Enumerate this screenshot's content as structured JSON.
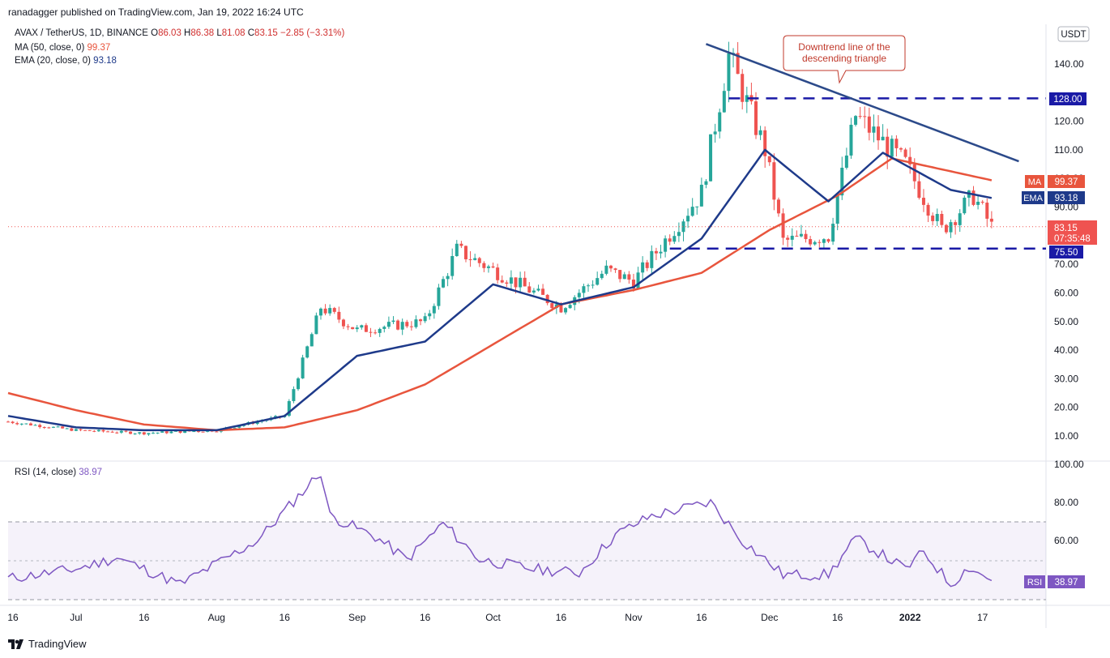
{
  "header": {
    "publisher_line": "ranadagger published on TradingView.com, Jan 19, 2022 16:24 UTC"
  },
  "legend": {
    "symbol": "AVAX / TetherUS, 1D, BINANCE",
    "o_label": "O",
    "o": "86.03",
    "h_label": "H",
    "h": "86.38",
    "l_label": "L",
    "l": "81.08",
    "c_label": "C",
    "c": "83.15",
    "change": "−2.85 (−3.31%)",
    "ma_label": "MA (50, close, 0)",
    "ma_value": "99.37",
    "ema_label": "EMA (20, close, 0)",
    "ema_value": "93.18",
    "rsi_label": "RSI (14, close)",
    "rsi_value": "38.97"
  },
  "price_axis": {
    "currency": "USDT",
    "ticks": [
      "140.00",
      "120.00",
      "110.00",
      "100.00",
      "90.00",
      "70.00",
      "60.00",
      "50.00",
      "40.00",
      "30.00",
      "20.00",
      "10.00"
    ]
  },
  "rsi_axis": {
    "ticks": [
      "100.00",
      "80.00",
      "60.00"
    ]
  },
  "price_badges": {
    "level_high": "128.00",
    "level_low": "75.50",
    "ma_tag": "MA",
    "ma": "99.37",
    "ema_tag": "EMA",
    "ema": "93.18",
    "last_price": "83.15",
    "countdown": "07:35:48",
    "rsi_tag": "RSI",
    "rsi": "38.97"
  },
  "annotation": {
    "line1": "Downtrend line of the",
    "line2": "descending triangle"
  },
  "time_axis": [
    "16",
    "Jul",
    "16",
    "Aug",
    "16",
    "Sep",
    "16",
    "Oct",
    "16",
    "Nov",
    "16",
    "Dec",
    "16",
    "2022",
    "17"
  ],
  "footer": {
    "logo_text": "TradingView"
  },
  "colors": {
    "up": "#26a69a",
    "down": "#ef5350",
    "ma": "#e8553d",
    "ema": "#1e3a8a",
    "rsi": "#7e57c2",
    "level": "#1a1aa6",
    "trend": "#2c4a8a"
  },
  "chart_data": [
    {
      "type": "candlestick",
      "title": "AVAX / TetherUS, 1D, BINANCE",
      "y_unit": "USDT",
      "ylim": [
        0,
        150
      ],
      "x_range": [
        "2022-06-16",
        "2023-01-30"
      ],
      "x_tick_labels": [
        "16",
        "Jul",
        "16",
        "Aug",
        "16",
        "Sep",
        "16",
        "Oct",
        "16",
        "Nov",
        "16",
        "Dec",
        "16",
        "2022",
        "17"
      ],
      "horizontal_levels": [
        128.0,
        75.5
      ],
      "downtrend_line": {
        "from": [
          "2021-11-17",
          147
        ],
        "to": [
          "2022-01-25",
          106
        ]
      },
      "series": [
        {
          "name": "MA (50, close, 0)",
          "last": 99.37,
          "points": [
            [
              "2021-06-16",
              25
            ],
            [
              "2021-07-01",
              19
            ],
            [
              "2021-07-16",
              14
            ],
            [
              "2021-08-01",
              12
            ],
            [
              "2021-08-16",
              13
            ],
            [
              "2021-09-01",
              19
            ],
            [
              "2021-09-16",
              28
            ],
            [
              "2021-10-01",
              42
            ],
            [
              "2021-10-16",
              56
            ],
            [
              "2021-11-01",
              61
            ],
            [
              "2021-11-16",
              67
            ],
            [
              "2021-12-01",
              82
            ],
            [
              "2021-12-16",
              94
            ],
            [
              "2021-12-28",
              107
            ],
            [
              "2022-01-19",
              99.37
            ]
          ]
        },
        {
          "name": "EMA (20, close, 0)",
          "last": 93.18,
          "points": [
            [
              "2021-06-16",
              17
            ],
            [
              "2021-07-01",
              13
            ],
            [
              "2021-07-16",
              12
            ],
            [
              "2021-08-01",
              12
            ],
            [
              "2021-08-16",
              17
            ],
            [
              "2021-09-01",
              38
            ],
            [
              "2021-09-16",
              43
            ],
            [
              "2021-10-01",
              63
            ],
            [
              "2021-10-16",
              56
            ],
            [
              "2021-11-01",
              62
            ],
            [
              "2021-11-16",
              79
            ],
            [
              "2021-11-30",
              110
            ],
            [
              "2021-12-14",
              92
            ],
            [
              "2021-12-26",
              109
            ],
            [
              "2022-01-10",
              96
            ],
            [
              "2022-01-19",
              93.18
            ]
          ]
        },
        {
          "name": "AVAX/USDT close",
          "last": 83.15,
          "points": [
            [
              "2021-06-16",
              15
            ],
            [
              "2021-07-01",
              12
            ],
            [
              "2021-07-16",
              11
            ],
            [
              "2021-08-01",
              12
            ],
            [
              "2021-08-16",
              17
            ],
            [
              "2021-08-24",
              55
            ],
            [
              "2021-09-01",
              47
            ],
            [
              "2021-09-16",
              50
            ],
            [
              "2021-09-23",
              75
            ],
            [
              "2021-10-01",
              68
            ],
            [
              "2021-10-16",
              55
            ],
            [
              "2021-10-26",
              68
            ],
            [
              "2021-11-01",
              64
            ],
            [
              "2021-11-16",
              95
            ],
            [
              "2021-11-22",
              143
            ],
            [
              "2021-11-30",
              110
            ],
            [
              "2021-12-04",
              78
            ],
            [
              "2021-12-14",
              80
            ],
            [
              "2021-12-20",
              122
            ],
            [
              "2021-12-31",
              105
            ],
            [
              "2022-01-08",
              82
            ],
            [
              "2022-01-15",
              94
            ],
            [
              "2022-01-19",
              83.15
            ]
          ]
        }
      ]
    },
    {
      "type": "line",
      "title": "RSI (14, close)",
      "ylim": [
        20,
        100
      ],
      "bands": [
        30,
        50,
        70
      ],
      "series": [
        {
          "name": "RSI (14, close)",
          "last": 38.97,
          "points": [
            [
              "2021-06-16",
              40
            ],
            [
              "2021-07-01",
              45
            ],
            [
              "2021-07-10",
              51
            ],
            [
              "2021-07-24",
              37
            ],
            [
              "2021-08-10",
              60
            ],
            [
              "2021-08-24",
              96
            ],
            [
              "2021-08-26",
              73
            ],
            [
              "2021-09-05",
              62
            ],
            [
              "2021-09-12",
              50
            ],
            [
              "2021-09-20",
              69
            ],
            [
              "2021-09-28",
              50
            ],
            [
              "2021-10-10",
              45
            ],
            [
              "2021-10-20",
              43
            ],
            [
              "2021-10-28",
              63
            ],
            [
              "2021-11-05",
              73
            ],
            [
              "2021-11-18",
              80
            ],
            [
              "2021-11-25",
              60
            ],
            [
              "2021-12-04",
              42
            ],
            [
              "2021-12-14",
              42
            ],
            [
              "2021-12-20",
              61
            ],
            [
              "2021-12-31",
              45
            ],
            [
              "2022-01-04",
              54
            ],
            [
              "2022-01-10",
              37
            ],
            [
              "2022-01-14",
              46
            ],
            [
              "2022-01-19",
              38.97
            ]
          ]
        }
      ]
    }
  ]
}
